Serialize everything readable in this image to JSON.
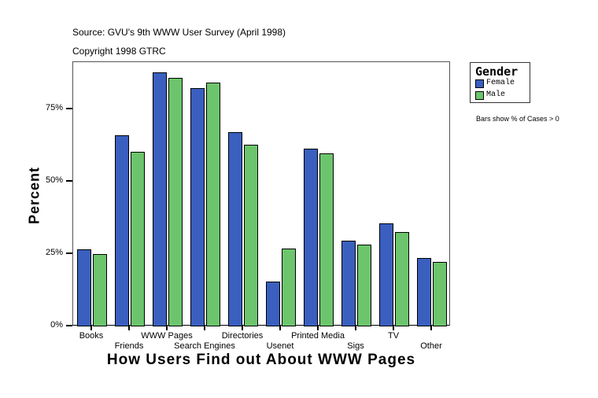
{
  "header": {
    "source": "Source: GVU's 9th WWW User Survey (April 1998)",
    "copyright": "Copyright 1998 GTRC"
  },
  "legend": {
    "title": "Gender",
    "items": [
      {
        "label": "Female",
        "color": "#3a5fbf"
      },
      {
        "label": "Male",
        "color": "#6cc56c"
      }
    ]
  },
  "note": "Bars show % of Cases > 0",
  "chart_data": {
    "type": "bar",
    "title": "",
    "xlabel": "How Users Find out About WWW Pages",
    "ylabel": "Percent",
    "ylim": [
      0,
      91
    ],
    "yticks": [
      "0%",
      "25%",
      "50%",
      "75%"
    ],
    "grid": false,
    "legend_position": "right",
    "categories": [
      "Books",
      "Friends",
      "WWW Pages",
      "Search Engines",
      "Directories",
      "Usenet",
      "Printed Media",
      "Sigs",
      "TV",
      "Other"
    ],
    "series": [
      {
        "name": "Female",
        "color": "#3a5fbf",
        "values": [
          26.6,
          66.0,
          87.8,
          82.3,
          67.1,
          15.5,
          61.4,
          29.6,
          35.6,
          23.6
        ]
      },
      {
        "name": "Male",
        "color": "#6cc56c",
        "values": [
          25.0,
          60.3,
          85.9,
          84.2,
          62.8,
          26.9,
          59.8,
          28.3,
          32.6,
          22.3
        ]
      }
    ]
  }
}
